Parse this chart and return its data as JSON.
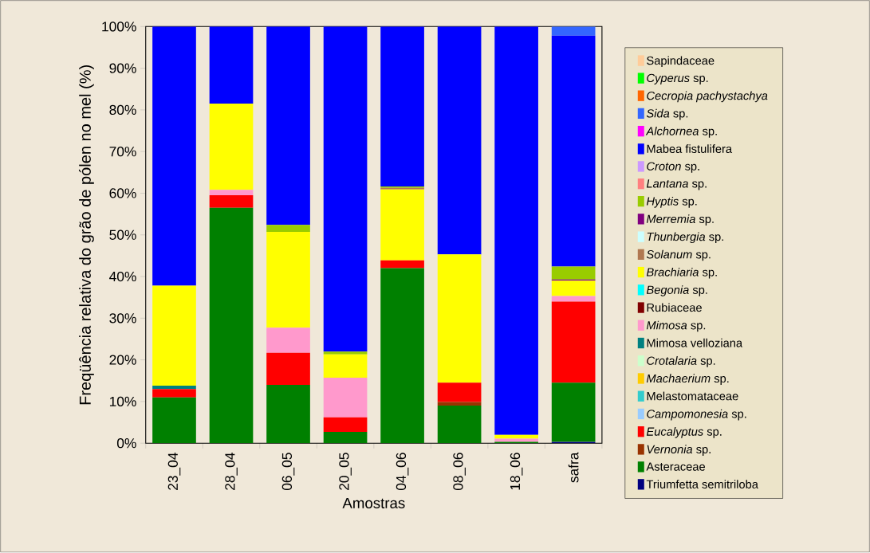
{
  "chart_data": {
    "type": "bar",
    "stacked": true,
    "xlabel": "Amostras",
    "ylabel": "Freqüência relativa do grão de pólen no mel (%)",
    "categories": [
      "23_04",
      "28_04",
      "06_05",
      "20_05",
      "04_06",
      "08_06",
      "18_06",
      "safra"
    ],
    "ylim": [
      0,
      100
    ],
    "yticks": [
      {
        "value": 0,
        "label": "0%"
      },
      {
        "value": 10,
        "label": "10%"
      },
      {
        "value": 20,
        "label": "20%"
      },
      {
        "value": 30,
        "label": "30%"
      },
      {
        "value": 40,
        "label": "40%"
      },
      {
        "value": 50,
        "label": "50%"
      },
      {
        "value": 60,
        "label": "60%"
      },
      {
        "value": 70,
        "label": "70%"
      },
      {
        "value": 80,
        "label": "80%"
      },
      {
        "value": 90,
        "label": "90%"
      },
      {
        "value": 100,
        "label": "100%"
      }
    ],
    "legend": "right",
    "series": [
      {
        "name": "Triumfetta semitriloba",
        "color": "#000080",
        "values": [
          0,
          0,
          0,
          0,
          0,
          0,
          0,
          0.3
        ]
      },
      {
        "name": "Asteraceae",
        "color": "#008000",
        "values": [
          11,
          56.5,
          14,
          2.7,
          42,
          9,
          0.3,
          14.2
        ]
      },
      {
        "name": "*Vernonia* sp.",
        "color": "#993300",
        "values": [
          0,
          0,
          0,
          0,
          0,
          0.9,
          0,
          0
        ]
      },
      {
        "name": "*Eucalyptus* sp.",
        "color": "#ff0000",
        "values": [
          2,
          3,
          7.7,
          3.5,
          1.9,
          4.6,
          0,
          19.5
        ]
      },
      {
        "name": "*Campomonesia* sp.",
        "color": "#99ccff",
        "values": [
          0,
          0,
          0,
          0,
          0,
          0,
          0,
          0
        ]
      },
      {
        "name": "Melastomataceae",
        "color": "#33cccc",
        "values": [
          0,
          0,
          0,
          0,
          0,
          0,
          0,
          0
        ]
      },
      {
        "name": "*Machaerium* sp.",
        "color": "#ffcc00",
        "values": [
          0,
          0,
          0,
          0,
          0,
          0,
          0,
          0
        ]
      },
      {
        "name": "*Crotalaria* sp.",
        "color": "#ccffcc",
        "values": [
          0,
          0,
          0,
          0,
          0,
          0,
          0,
          0
        ]
      },
      {
        "name": "Mimosa velloziana",
        "color": "#008080",
        "values": [
          0.8,
          0,
          0,
          0,
          0,
          0,
          0,
          0
        ]
      },
      {
        "name": "*Mimosa* sp.",
        "color": "#ff99cc",
        "values": [
          0,
          1.3,
          6,
          9.5,
          0,
          0,
          0.8,
          1.3
        ]
      },
      {
        "name": "Rubiaceae",
        "color": "#800000",
        "values": [
          0,
          0,
          0,
          0,
          0,
          0,
          0,
          0
        ]
      },
      {
        "name": "*Begonia* sp.",
        "color": "#00ffff",
        "values": [
          0,
          0,
          0,
          0,
          0,
          0,
          0,
          0
        ]
      },
      {
        "name": "*Brachiaria* sp.",
        "color": "#ffff00",
        "values": [
          24,
          20.7,
          23,
          5.6,
          17,
          30.8,
          0.9,
          3.7
        ]
      },
      {
        "name": "*Solanum* sp.",
        "color": "#b07850",
        "values": [
          0,
          0,
          0,
          0,
          0.4,
          0,
          0,
          0
        ]
      },
      {
        "name": "*Thunbergia* sp.",
        "color": "#ccffff",
        "values": [
          0,
          0,
          0,
          0,
          0,
          0,
          0,
          0
        ]
      },
      {
        "name": "*Merremia* sp.",
        "color": "#800080",
        "values": [
          0,
          0,
          0,
          0,
          0,
          0,
          0,
          0.3
        ]
      },
      {
        "name": "*Hyptis* sp.",
        "color": "#99cc00",
        "values": [
          0,
          0,
          1.7,
          0.7,
          0.3,
          0,
          0,
          3.1
        ]
      },
      {
        "name": "*Lantana* sp.",
        "color": "#ff8080",
        "values": [
          0,
          0,
          0,
          0,
          0,
          0,
          0,
          0
        ]
      },
      {
        "name": "*Croton* sp.",
        "color": "#cc99ff",
        "values": [
          0,
          0,
          0,
          0,
          0,
          0,
          0,
          0
        ]
      },
      {
        "name": "Mabea fistulifera",
        "color": "#0000ff",
        "values": [
          62.2,
          18.5,
          47.6,
          78,
          38.4,
          54.7,
          98,
          55.4
        ]
      },
      {
        "name": "*Alchornea* sp.",
        "color": "#ff00ff",
        "values": [
          0,
          0,
          0,
          0,
          0,
          0,
          0,
          0
        ]
      },
      {
        "name": "*Sida* sp.",
        "color": "#3366ff",
        "values": [
          0,
          0,
          0,
          0,
          0,
          0,
          0,
          2.2
        ]
      },
      {
        "name": "*Cecropia pachystachya*",
        "color": "#ff6600",
        "values": [
          0,
          0,
          0,
          0,
          0,
          0,
          0,
          0
        ]
      },
      {
        "name": "*Cyperus* sp.",
        "color": "#00ff00",
        "values": [
          0,
          0,
          0,
          0,
          0,
          0,
          0,
          0
        ]
      },
      {
        "name": "Sapindaceae",
        "color": "#ffcc99",
        "values": [
          0,
          0,
          0,
          0,
          0,
          0,
          0,
          0
        ]
      }
    ]
  }
}
